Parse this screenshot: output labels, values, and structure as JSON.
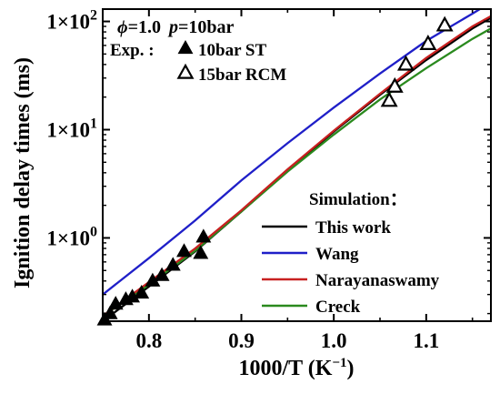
{
  "chart_data": {
    "type": "line",
    "title": "",
    "xlabel": "1000/T (K⁻¹)",
    "ylabel": "Ignition delay times (ms)",
    "x_scale": "linear",
    "y_scale": "log",
    "xlim": [
      0.75,
      1.17
    ],
    "ylim": [
      0.17,
      130
    ],
    "x_ticks": [
      0.8,
      0.9,
      1.0,
      1.1
    ],
    "x_tick_labels": [
      "0.8",
      "0.9",
      "1.0",
      "1.1"
    ],
    "y_ticks": [
      1,
      10,
      100
    ],
    "y_tick_labels": [
      "1×10⁰",
      "1×10¹",
      "1×10²"
    ],
    "conditions": {
      "phi_symbol": "ϕ",
      "phi_value": "=1.0",
      "p_symbol": "p",
      "p_value": "=10bar"
    },
    "experiments_label": "Exp. :",
    "simulation_label": "Simulation：",
    "experiments": [
      {
        "name": "10bar ST",
        "marker": "filled-triangle",
        "color": "#000000",
        "x": [
          0.752,
          0.758,
          0.764,
          0.775,
          0.782,
          0.792,
          0.804,
          0.814,
          0.826,
          0.838,
          0.856,
          0.859
        ],
        "y": [
          0.175,
          0.2,
          0.245,
          0.27,
          0.285,
          0.31,
          0.4,
          0.45,
          0.56,
          0.75,
          0.72,
          1.02
        ]
      },
      {
        "name": "15bar RCM",
        "marker": "open-triangle",
        "color": "#000000",
        "x": [
          1.06,
          1.066,
          1.078,
          1.102,
          1.12
        ],
        "y": [
          18.5,
          25.0,
          40.0,
          62.0,
          92.0
        ]
      }
    ],
    "series": [
      {
        "name": "This work",
        "color": "#000000",
        "x": [
          0.75,
          0.8,
          0.85,
          0.9,
          0.95,
          1.0,
          1.05,
          1.1,
          1.15,
          1.17
        ],
        "y": [
          0.17,
          0.355,
          0.75,
          1.75,
          4.2,
          9.6,
          21,
          44,
          86,
          108
        ]
      },
      {
        "name": "Wang",
        "color": "#1f1fc8",
        "x": [
          0.75,
          0.8,
          0.85,
          0.9,
          0.95,
          1.0,
          1.05,
          1.1,
          1.15,
          1.17
        ],
        "y": [
          0.3,
          0.65,
          1.45,
          3.4,
          7.5,
          16,
          33,
          66,
          118,
          150
        ]
      },
      {
        "name": "Narayanaswamy",
        "color": "#c82020",
        "x": [
          0.75,
          0.8,
          0.85,
          0.9,
          0.95,
          1.0,
          1.05,
          1.1,
          1.15,
          1.17
        ],
        "y": [
          0.19,
          0.39,
          0.8,
          1.8,
          4.3,
          9.8,
          21.5,
          46,
          90,
          112
        ]
      },
      {
        "name": "Creck",
        "color": "#2a8a1e",
        "x": [
          0.75,
          0.8,
          0.85,
          0.9,
          0.95,
          1.0,
          1.05,
          1.1,
          1.15,
          1.17
        ],
        "y": [
          0.19,
          0.37,
          0.76,
          1.75,
          4.1,
          9.0,
          19,
          37,
          69,
          86
        ]
      }
    ],
    "grid": false,
    "legend_position": "bottom-right"
  }
}
